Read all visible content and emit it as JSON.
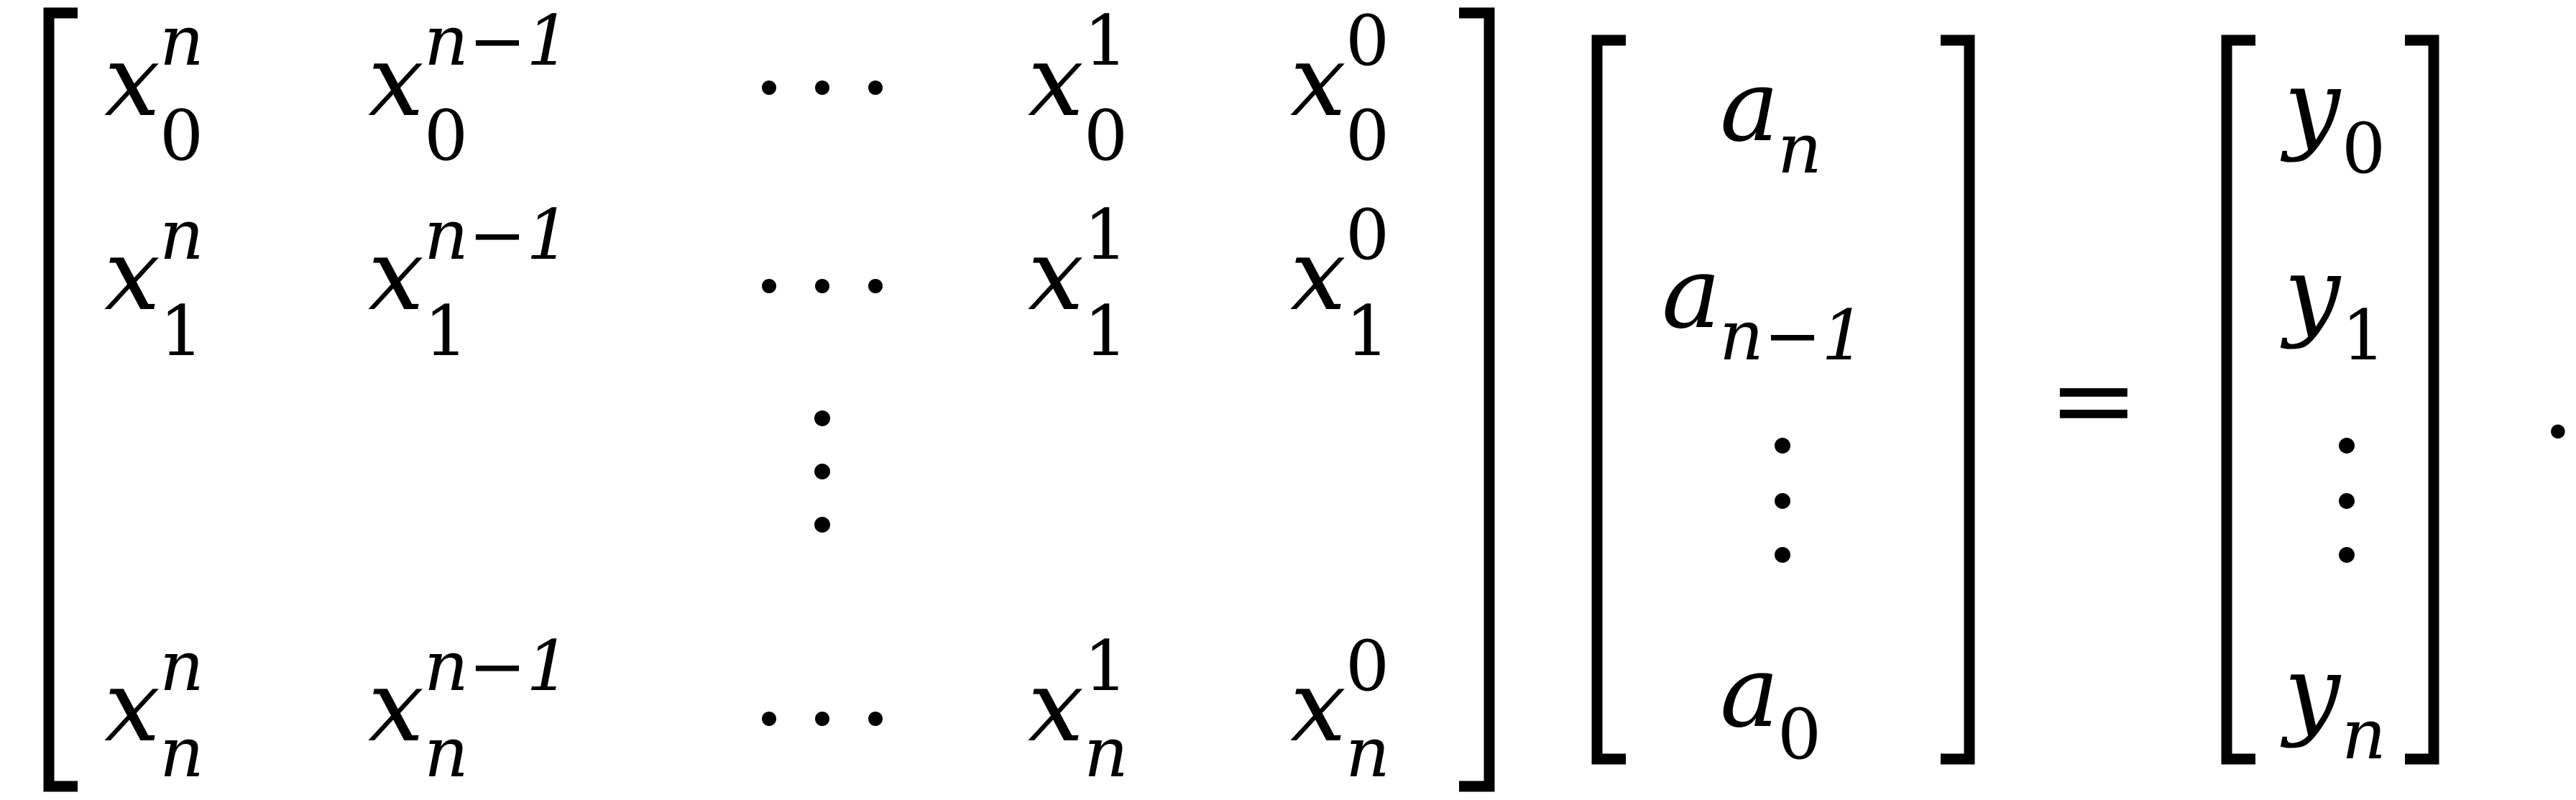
{
  "equation": {
    "matrix": {
      "rows": [
        [
          {
            "base": "x",
            "sub": "0",
            "sup": "n"
          },
          {
            "base": "x",
            "sub": "0",
            "sup": "n−1"
          },
          {
            "ellipsis": "horizontal"
          },
          {
            "base": "x",
            "sub": "0",
            "sup": "1"
          },
          {
            "base": "x",
            "sub": "0",
            "sup": "0"
          }
        ],
        [
          {
            "base": "x",
            "sub": "1",
            "sup": "n"
          },
          {
            "base": "x",
            "sub": "1",
            "sup": "n−1"
          },
          {
            "ellipsis": "horizontal"
          },
          {
            "base": "x",
            "sub": "1",
            "sup": "1"
          },
          {
            "base": "x",
            "sub": "1",
            "sup": "0"
          }
        ],
        [
          {
            "ellipsis": "vertical",
            "column": 3
          }
        ],
        [
          {
            "base": "x",
            "sub": "n",
            "sup": "n"
          },
          {
            "base": "x",
            "sub": "n",
            "sup": "n−1"
          },
          {
            "ellipsis": "horizontal"
          },
          {
            "base": "x",
            "sub": "n",
            "sup": "1"
          },
          {
            "base": "x",
            "sub": "n",
            "sup": "0"
          }
        ]
      ]
    },
    "coefficients": [
      {
        "base": "a",
        "sub": "n"
      },
      {
        "base": "a",
        "sub": "n−1"
      },
      {
        "ellipsis": "vertical"
      },
      {
        "base": "a",
        "sub": "0"
      }
    ],
    "equals": "=",
    "values": [
      {
        "base": "y",
        "sub": "0"
      },
      {
        "base": "y",
        "sub": "1"
      },
      {
        "ellipsis": "vertical"
      },
      {
        "base": "y",
        "sub": "n"
      }
    ],
    "terminator": "."
  }
}
